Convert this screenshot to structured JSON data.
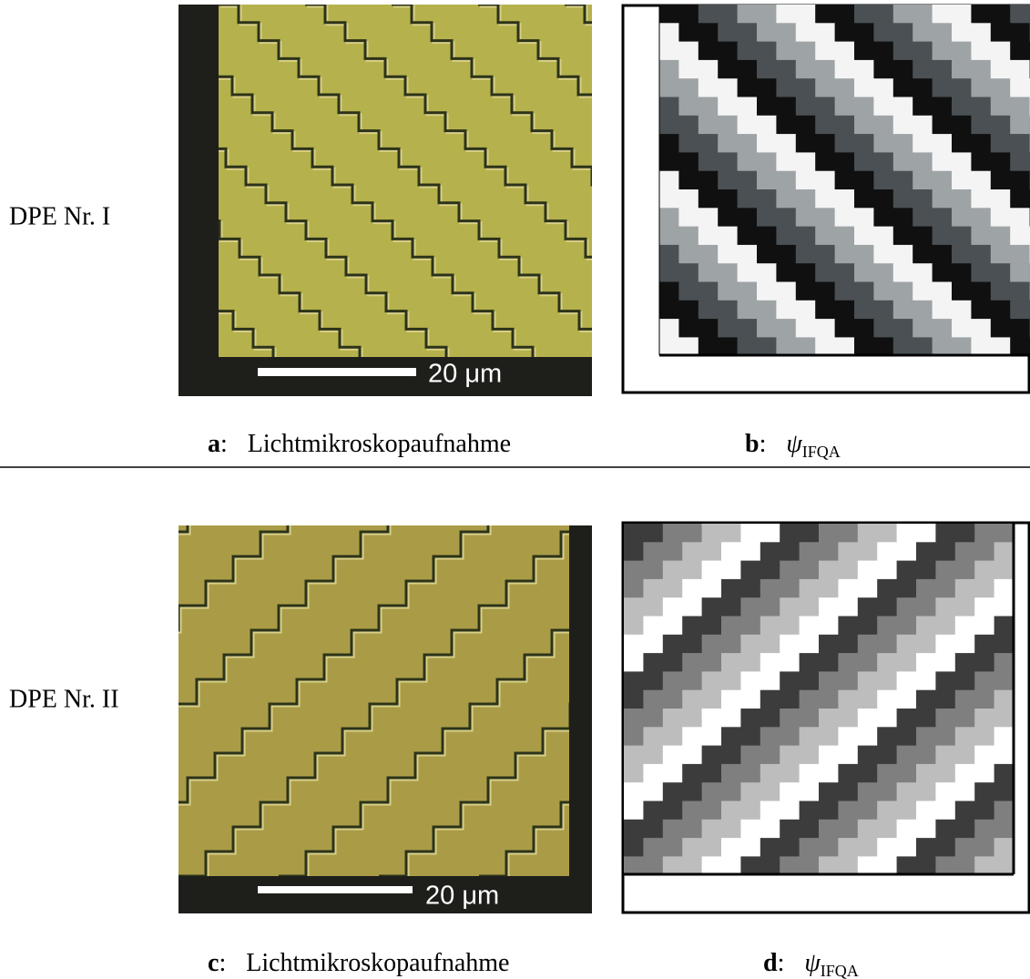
{
  "rows": [
    {
      "label": "DPE Nr. I",
      "scale_bar": "20 μm",
      "panels": [
        {
          "letter": "a",
          "separator": ":",
          "caption": "Lichtmikroskopaufnahme"
        },
        {
          "letter": "b",
          "separator": ":",
          "symbol": "ψ",
          "subscript": "IFQA"
        }
      ]
    },
    {
      "label": "DPE Nr. II",
      "scale_bar": "20 μm",
      "panels": [
        {
          "letter": "c",
          "separator": ":",
          "caption": "Lichtmikroskopaufnahme"
        },
        {
          "letter": "d",
          "separator": ":",
          "symbol": "ψ",
          "subscript": "IFQA"
        }
      ]
    }
  ]
}
